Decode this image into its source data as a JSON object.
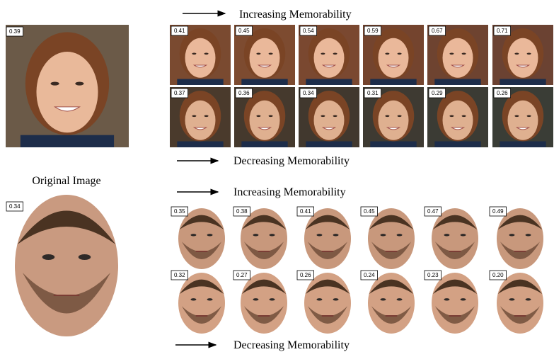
{
  "top": {
    "original_score": "0.39",
    "increasing": {
      "label": "Increasing Memorability",
      "scores": [
        "0.41",
        "0.45",
        "0.54",
        "0.59",
        "0.67",
        "0.71"
      ]
    },
    "decreasing": {
      "label": "Decreasing Memorability",
      "scores": [
        "0.37",
        "0.36",
        "0.34",
        "0.31",
        "0.29",
        "0.26"
      ]
    }
  },
  "caption": "Original Image",
  "bottom": {
    "original_score": "0.34",
    "increasing": {
      "label": "Increasing Memorability",
      "scores": [
        "0.35",
        "0.38",
        "0.41",
        "0.45",
        "0.47",
        "0.49"
      ]
    },
    "decreasing": {
      "label": "Decreasing Memorability",
      "scores": [
        "0.32",
        "0.27",
        "0.26",
        "0.24",
        "0.23",
        "0.20"
      ]
    }
  }
}
